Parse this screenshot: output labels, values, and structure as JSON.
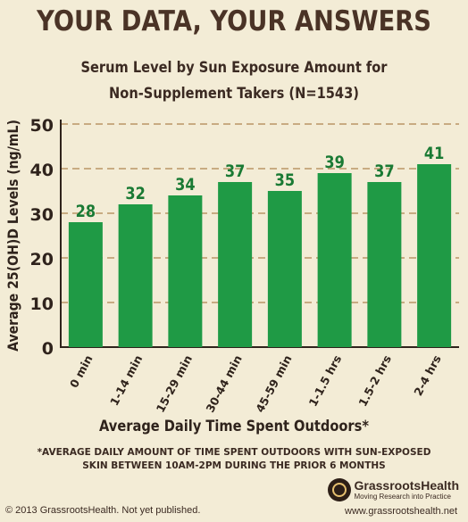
{
  "header": {
    "headline": "YOUR DATA, YOUR ANSWERS",
    "subtitle_line1": "Serum Level by Sun Exposure Amount for",
    "subtitle_line2": "Non-Supplement Takers (N=1543)"
  },
  "chart_data": {
    "type": "bar",
    "categories": [
      "0 min",
      "1-14 min",
      "15-29 min",
      "30-44 min",
      "45-59 min",
      "1-1.5 hrs",
      "1.5-2 hrs",
      "2-4 hrs"
    ],
    "values": [
      28,
      32,
      34,
      37,
      35,
      39,
      37,
      41
    ],
    "xlabel": "Average Daily Time Spent Outdoors*",
    "ylabel": "Average 25(OH)D Levels (ng/mL)",
    "ylim": [
      0,
      50
    ],
    "yticks": [
      0,
      10,
      20,
      30,
      40,
      50
    ],
    "grid": true,
    "legend": "none",
    "data_labels": true,
    "colors": {
      "bar": "#1f9a45",
      "label": "#1a7a34",
      "grid": "#b99567",
      "axis": "#2f231c"
    }
  },
  "footnote": {
    "line1": "*AVERAGE DAILY AMOUNT OF TIME SPENT OUTDOORS WITH SUN-EXPOSED",
    "line2": "SKIN BETWEEN 10AM-2PM DURING THE PRIOR 6 MONTHS"
  },
  "footer": {
    "copyright": "© 2013 GrassrootsHealth. Not yet published.",
    "logo_name": "GrassrootsHealth",
    "logo_tagline": "Moving Research into Practice",
    "website": "www.grassrootshealth.net"
  },
  "icons": {
    "logo": "vitruvian-man-icon"
  },
  "colors": {
    "background": "#f3ecd6",
    "headline": "#4a3326"
  }
}
